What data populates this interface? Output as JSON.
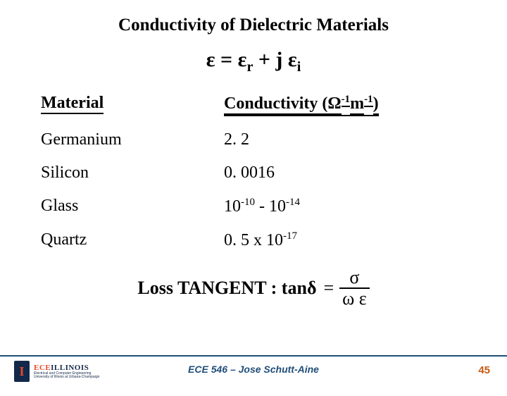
{
  "title": "Conductivity of Dielectric Materials",
  "equation": {
    "full_plain": "ε = εr + j εi"
  },
  "table": {
    "type": "table",
    "columns": [
      "Material",
      "Conductivity (Ω⁻¹ m⁻¹)"
    ],
    "header": {
      "material": "Material",
      "conductivity_prefix": "Conductivity (",
      "omega": "Ω",
      "exp1": "-1",
      "space_m": " m",
      "exp2": "-1",
      "close": ")"
    },
    "rows": [
      {
        "material": "Germanium",
        "value_plain": "2. 2"
      },
      {
        "material": "Silicon",
        "value_plain": "0. 0016"
      },
      {
        "material": "Glass",
        "value_prefix": "10",
        "value_exp1": "-10",
        "value_mid": "  -  10",
        "value_exp2": "-14"
      },
      {
        "material": "Quartz",
        "value_prefix": "0. 5 x 10",
        "value_exp1": "-17"
      }
    ],
    "font_size_pt": 18,
    "header_fontweight": "bold",
    "text_color": "#000000"
  },
  "loss_tangent": {
    "label": "Loss TANGENT : tan",
    "delta": "δ",
    "equals": " = ",
    "numerator": "σ",
    "denominator": "ω ε"
  },
  "footer": {
    "line_color": "#1f4e79",
    "text": "ECE 546 – Jose Schutt-Aine",
    "text_color": "#1f4e79",
    "page_number": "45",
    "page_number_color": "#c55a11"
  },
  "logo": {
    "block_i_bg": "#13294b",
    "block_i_fg": "#e84a27",
    "glyph": "I",
    "ece": "ECE",
    "illinois": "ILLINOIS",
    "sub1": "Electrical and Computer Engineering",
    "sub2": "University of Illinois at Urbana-Champaign"
  },
  "colors": {
    "background": "#ffffff",
    "text": "#000000"
  }
}
